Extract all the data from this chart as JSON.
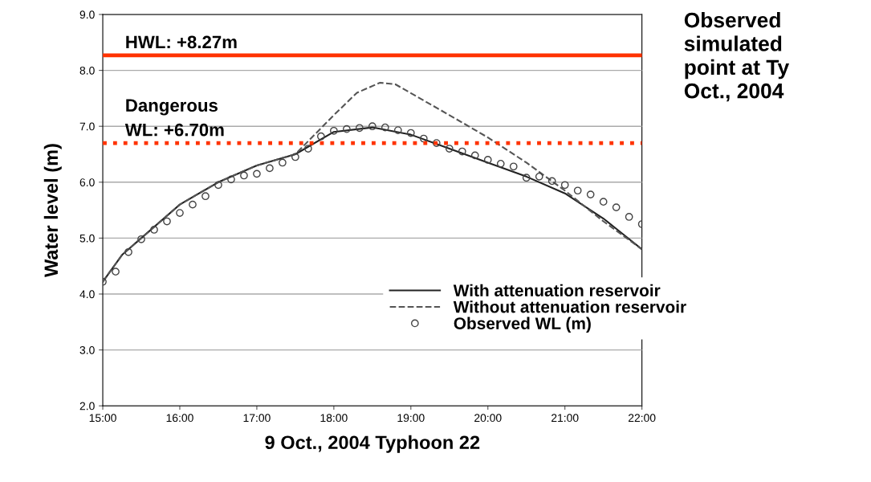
{
  "chart_data": {
    "type": "line",
    "title": "Observed\nsimulated\npoint at Ty\nOct., 2004",
    "xlabel": "9 Oct., 2004 Typhoon 22",
    "ylabel": "Water level (m)",
    "xlim": [
      15,
      22
    ],
    "xticks": [
      {
        "value": 15,
        "label": "15:00"
      },
      {
        "value": 16,
        "label": "16:00"
      },
      {
        "value": 17,
        "label": "17:00"
      },
      {
        "value": 18,
        "label": "18:00"
      },
      {
        "value": 19,
        "label": "19:00"
      },
      {
        "value": 20,
        "label": "20:00"
      },
      {
        "value": 21,
        "label": "21:00"
      },
      {
        "value": 22,
        "label": "22:00"
      }
    ],
    "ylim": [
      2,
      9
    ],
    "yticks": [
      {
        "value": 2,
        "label": "2.0"
      },
      {
        "value": 3,
        "label": "3.0"
      },
      {
        "value": 4,
        "label": "4.0"
      },
      {
        "value": 5,
        "label": "5.0"
      },
      {
        "value": 6,
        "label": "6.0"
      },
      {
        "value": 7,
        "label": "7.0"
      },
      {
        "value": 8,
        "label": "8.0"
      },
      {
        "value": 9,
        "label": "9.0"
      }
    ],
    "grid": "y",
    "legend": "bottom right",
    "ref_lines": [
      {
        "axis": "y",
        "value": 8.27,
        "label": "HWL: +8.27m",
        "color": "#ff3300",
        "line_style": "solid"
      },
      {
        "axis": "y",
        "value": 6.7,
        "label": "Dangerous\nWL: +6.70m",
        "color": "#ff3300",
        "line_style": "dotted"
      }
    ],
    "series": [
      {
        "name": "With attenuation reservoir",
        "color": "#222222",
        "line_style": "solid",
        "marker": "none",
        "x": [
          15,
          15.25,
          15.5,
          16,
          16.5,
          17,
          17.5,
          18,
          18.5,
          19,
          19.5,
          20,
          20.5,
          21,
          21.5,
          22
        ],
        "values": [
          4.22,
          4.7,
          5.0,
          5.6,
          6.0,
          6.3,
          6.5,
          6.9,
          6.98,
          6.85,
          6.6,
          6.35,
          6.1,
          5.8,
          5.35,
          4.8
        ]
      },
      {
        "name": "Without attenuation reservoir",
        "color": "#555555",
        "line_style": "dashed",
        "marker": "none",
        "x": [
          15,
          15.25,
          15.5,
          16,
          16.5,
          17,
          17.5,
          18,
          18.3,
          18.6,
          18.8,
          19.5,
          20,
          20.5,
          21,
          21.5,
          22
        ],
        "values": [
          4.22,
          4.7,
          5.0,
          5.6,
          6.0,
          6.3,
          6.5,
          7.2,
          7.6,
          7.78,
          7.75,
          7.2,
          6.8,
          6.35,
          5.85,
          5.3,
          4.8
        ]
      },
      {
        "name": "Observed WL (m)",
        "type": "scatter",
        "color": "#444444",
        "marker": "circle",
        "x": [
          15,
          15.1667,
          15.3333,
          15.5,
          15.6667,
          15.8333,
          16,
          16.1667,
          16.3333,
          16.5,
          16.6667,
          16.8333,
          17,
          17.1667,
          17.3333,
          17.5,
          17.6667,
          17.8333,
          18,
          18.1667,
          18.3333,
          18.5,
          18.6667,
          18.8333,
          19,
          19.1667,
          19.3333,
          19.5,
          19.6667,
          19.8333,
          20,
          20.1667,
          20.3333,
          20.5,
          20.6667,
          20.8333,
          21,
          21.1667,
          21.3333,
          21.5,
          21.6667,
          21.8333,
          22
        ],
        "values": [
          4.22,
          4.4,
          4.75,
          4.98,
          5.15,
          5.3,
          5.45,
          5.6,
          5.75,
          5.95,
          6.05,
          6.12,
          6.15,
          6.25,
          6.35,
          6.45,
          6.6,
          6.82,
          6.92,
          6.95,
          6.97,
          7.0,
          6.98,
          6.93,
          6.88,
          6.78,
          6.7,
          6.6,
          6.55,
          6.48,
          6.4,
          6.33,
          6.28,
          6.08,
          6.1,
          6.02,
          5.95,
          5.85,
          5.78,
          5.65,
          5.55,
          5.38,
          5.25
        ]
      }
    ]
  }
}
